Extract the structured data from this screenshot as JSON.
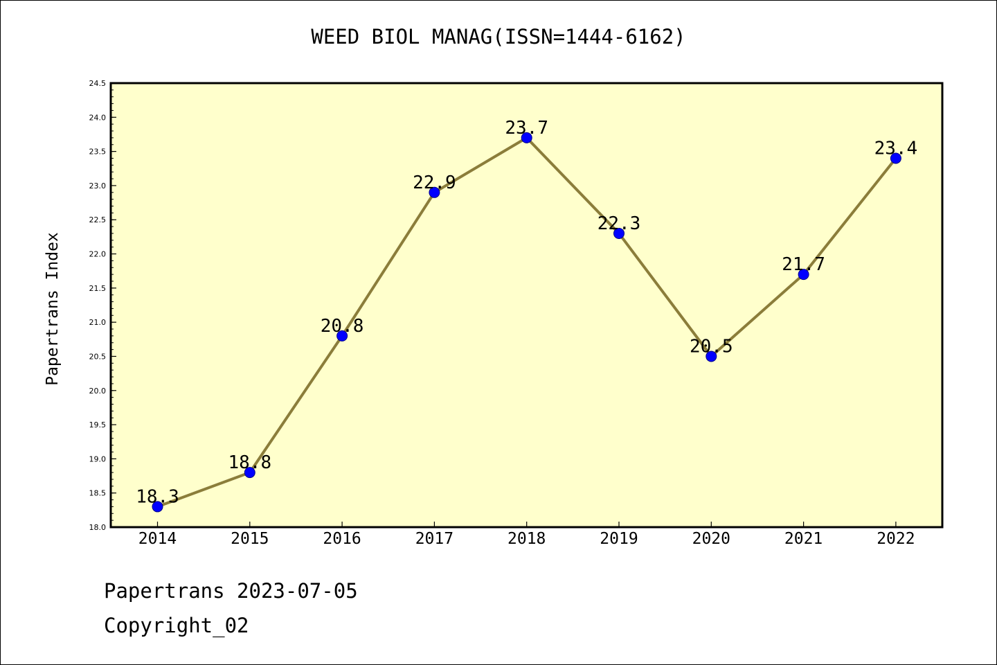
{
  "colors": {
    "plot_background": "#ffffcc",
    "line": "#8b7d3a",
    "marker_fill": "#0000ff",
    "marker_stroke": "#00008b"
  },
  "chart_data": {
    "type": "line",
    "title": "WEED BIOL MANAG(ISSN=1444-6162)",
    "xlabel": "",
    "ylabel": "Papertrans Index",
    "categories": [
      "2014",
      "2015",
      "2016",
      "2017",
      "2018",
      "2019",
      "2020",
      "2021",
      "2022"
    ],
    "series": [
      {
        "values": [
          18.3,
          18.8,
          20.8,
          22.9,
          23.7,
          22.3,
          20.5,
          21.7,
          23.4
        ],
        "data_labels": [
          "18.3",
          "18.8",
          "20.8",
          "22.9",
          "23.7",
          "22.3",
          "20.5",
          "21.7",
          "23.4"
        ]
      }
    ],
    "ylim": [
      18.0,
      24.5
    ],
    "y_ticks": [
      "18.0",
      "18.5",
      "19.0",
      "19.5",
      "20.0",
      "20.5",
      "21.0",
      "21.5",
      "22.0",
      "22.5",
      "23.0",
      "23.5",
      "24.0",
      "24.5"
    ],
    "grid": false,
    "legend": "none"
  },
  "footer": {
    "line1": "Papertrans 2023-07-05",
    "line2": "Copyright_02"
  }
}
